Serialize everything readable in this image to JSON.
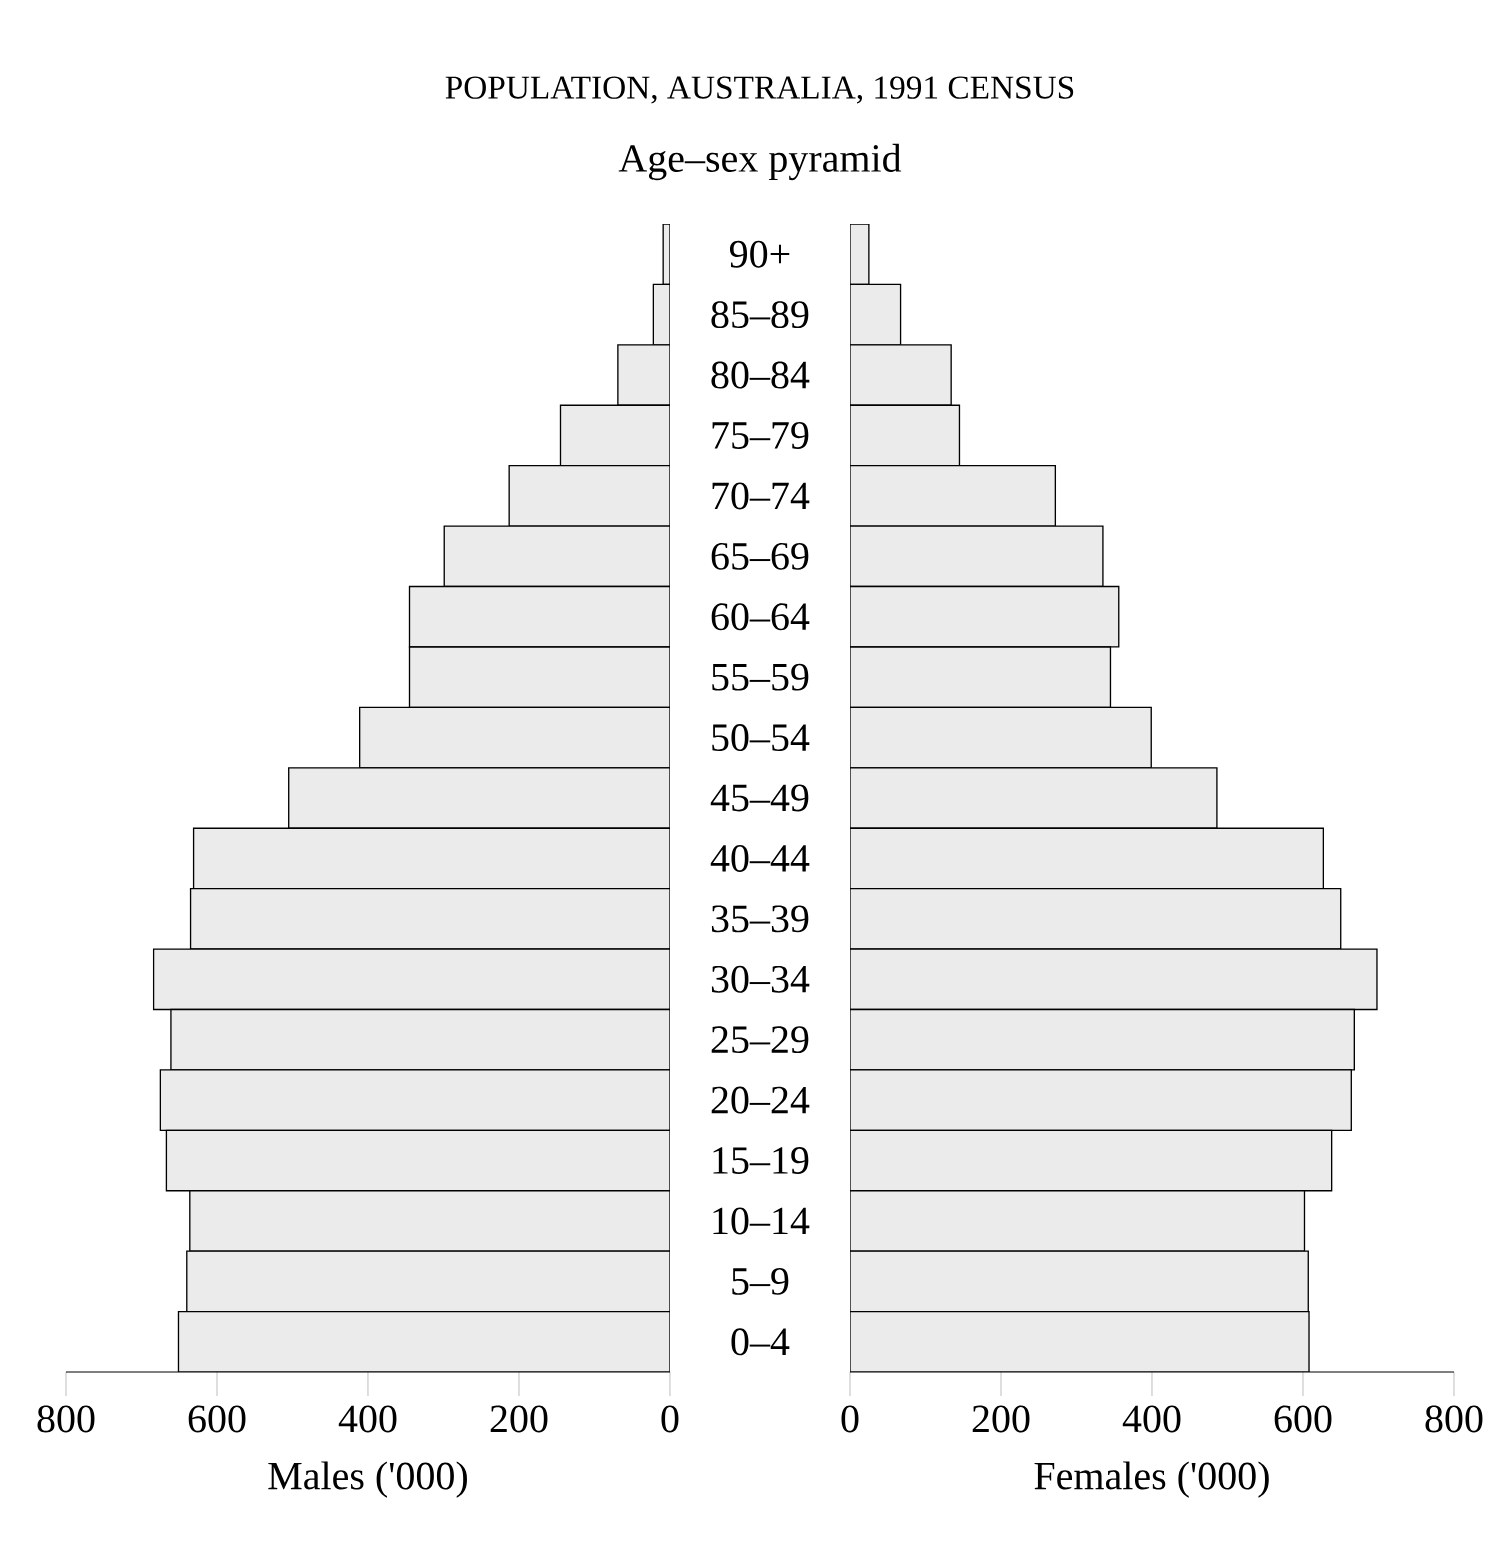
{
  "chart_data": [
    {
      "type": "bar",
      "orientation": "horizontal",
      "title": "POPULATION, AUSTRALIA, 1991 CENSUS",
      "subtitle": "Age–sex pyramid",
      "xlabel": "Males ('000)",
      "categories": [
        "90+",
        "85–89",
        "80–84",
        "75–79",
        "70–74",
        "65–69",
        "60–64",
        "55–59",
        "50–54",
        "45–49",
        "40–44",
        "35–39",
        "30–34",
        "25–29",
        "20–24",
        "15–19",
        "10–14",
        "5–9",
        "0–4"
      ],
      "values": [
        9,
        22,
        69,
        145,
        213,
        299,
        345,
        345,
        411,
        505,
        631,
        635,
        684,
        661,
        675,
        667,
        636,
        640,
        651
      ],
      "color": "#ebebeb",
      "xlim": [
        800,
        0
      ],
      "xticks": [
        800,
        600,
        400,
        200,
        0
      ]
    },
    {
      "type": "bar",
      "orientation": "horizontal",
      "xlabel": "Females ('000)",
      "categories": [
        null,
        null,
        null,
        null,
        null,
        null,
        null,
        null,
        null,
        null,
        null,
        null,
        null,
        null,
        null,
        null,
        null,
        null,
        null
      ],
      "values": [
        25,
        67,
        134,
        145,
        272,
        335,
        356,
        345,
        399,
        486,
        627,
        650,
        698,
        668,
        664,
        638,
        602,
        607,
        608
      ],
      "color": "#ebebeb",
      "xlim": [
        0,
        800
      ],
      "xticks": [
        0,
        200,
        400,
        600,
        800
      ],
      "tick_labels": "x"
    }
  ]
}
